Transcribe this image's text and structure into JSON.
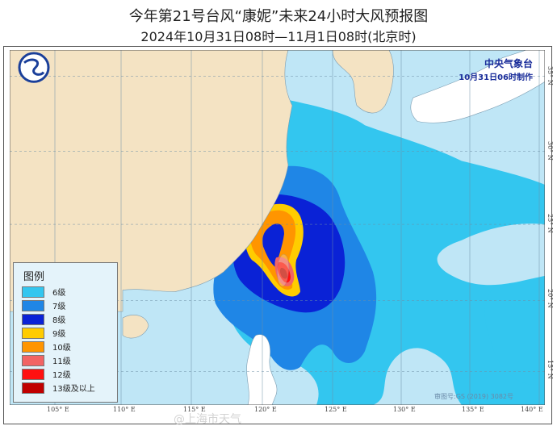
{
  "title": "今年第21号台风“康妮”未来24小时大风预报图",
  "subtitle": "2024年10月31日08时—11月1日08时(北京时)",
  "agency": {
    "name": "中央气象台",
    "issued": "10月31日06时制作"
  },
  "legend": {
    "title": "图例",
    "items": [
      {
        "label": "6级",
        "color": "#33c6ef"
      },
      {
        "label": "7级",
        "color": "#1f86e6"
      },
      {
        "label": "8级",
        "color": "#0a22d6"
      },
      {
        "label": "9级",
        "color": "#ffcc00"
      },
      {
        "label": "10级",
        "color": "#ff9500"
      },
      {
        "label": "11级",
        "color": "#f26464"
      },
      {
        "label": "12级",
        "color": "#ff1010"
      },
      {
        "label": "13级及以上",
        "color": "#c00000"
      }
    ]
  },
  "lon_labels": [
    "105° E",
    "110° E",
    "115° E",
    "120° E",
    "125° E",
    "130° E",
    "135° E",
    "140° E"
  ],
  "lat_labels": [
    "35° N",
    "30° N",
    "25° N",
    "20° N",
    "15° N"
  ],
  "map_credit": "审图号:GS (2019) 3082号",
  "watermark": "@上海市天气",
  "colors": {
    "land": "#f4e3c3",
    "sea": "#bfe6f6"
  }
}
